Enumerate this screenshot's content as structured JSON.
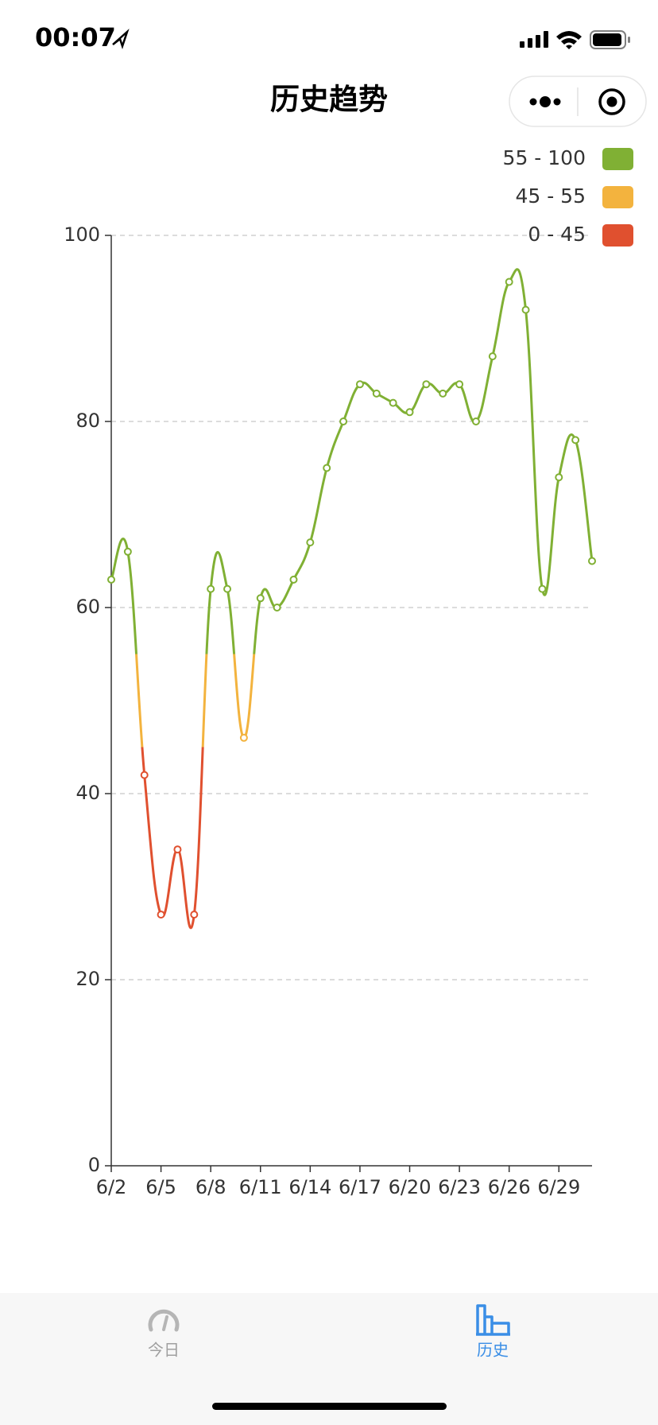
{
  "status_bar": {
    "time": "00:07"
  },
  "header": {
    "title": "历史趋势"
  },
  "tabs": [
    {
      "label": "今日"
    },
    {
      "label": "历史"
    }
  ],
  "chart_data": {
    "type": "line",
    "categories": [
      "6/2",
      null,
      null,
      "6/5",
      null,
      null,
      "6/8",
      null,
      null,
      "6/11",
      null,
      null,
      "6/14",
      null,
      null,
      "6/17",
      null,
      null,
      "6/20",
      null,
      null,
      "6/23",
      null,
      null,
      "6/26",
      null,
      null,
      "6/29",
      null,
      null
    ],
    "values": [
      63,
      66,
      42,
      27,
      34,
      27,
      62,
      62,
      46,
      61,
      60,
      63,
      67,
      75,
      80,
      84,
      83,
      82,
      81,
      84,
      83,
      84,
      80,
      87,
      95,
      92,
      62,
      74,
      78,
      65
    ],
    "ylim": [
      0,
      100
    ],
    "yticks": [
      0,
      20,
      40,
      60,
      80,
      100
    ],
    "grid": true,
    "smooth": true,
    "visual_map": {
      "position": "top-right",
      "pieces": [
        {
          "label": "55 - 100",
          "min": 55,
          "max": 100,
          "color": "#80b034"
        },
        {
          "label": "45 - 55",
          "min": 45,
          "max": 55,
          "color": "#f3b33e"
        },
        {
          "label": "0 - 45",
          "min": 0,
          "max": 45,
          "color": "#e0502f"
        }
      ]
    }
  }
}
